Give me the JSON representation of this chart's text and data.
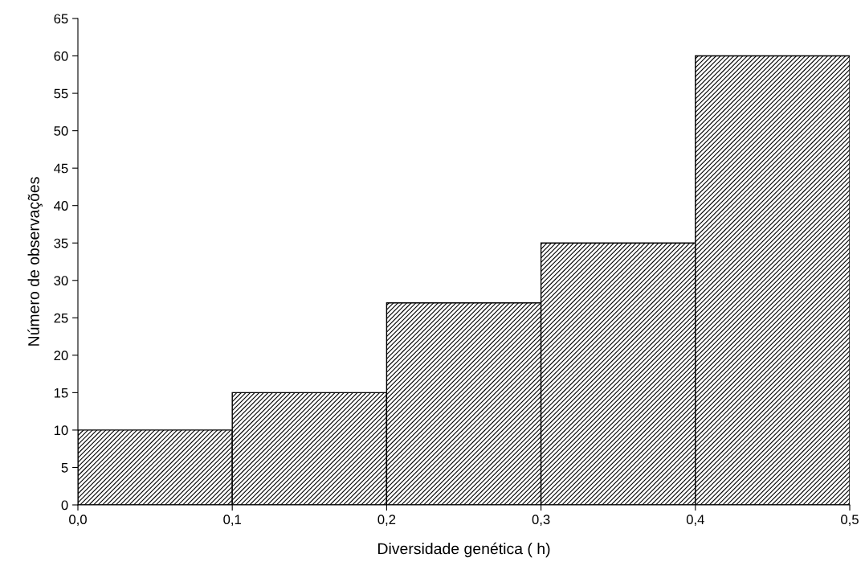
{
  "chart_data": {
    "type": "histogram",
    "xlabel": "Diversidade genética ( h)",
    "ylabel": "Número de observações",
    "bins": [
      0.0,
      0.1,
      0.2,
      0.3,
      0.4,
      0.5
    ],
    "values": [
      10,
      15,
      27,
      35,
      60
    ],
    "color": "#000000",
    "xlim": [
      0.0,
      0.5
    ],
    "xticks": [
      {
        "value": 0.0,
        "label": "0,0"
      },
      {
        "value": 0.1,
        "label": "0,1"
      },
      {
        "value": 0.2,
        "label": "0,2"
      },
      {
        "value": 0.3,
        "label": "0,3"
      },
      {
        "value": 0.4,
        "label": "0,4"
      },
      {
        "value": 0.5,
        "label": "0,5"
      }
    ],
    "ylim": [
      0,
      65
    ],
    "yticks": [
      0,
      5,
      10,
      15,
      20,
      25,
      30,
      35,
      40,
      45,
      50,
      55,
      60,
      65
    ],
    "grid": false,
    "legend": false
  }
}
